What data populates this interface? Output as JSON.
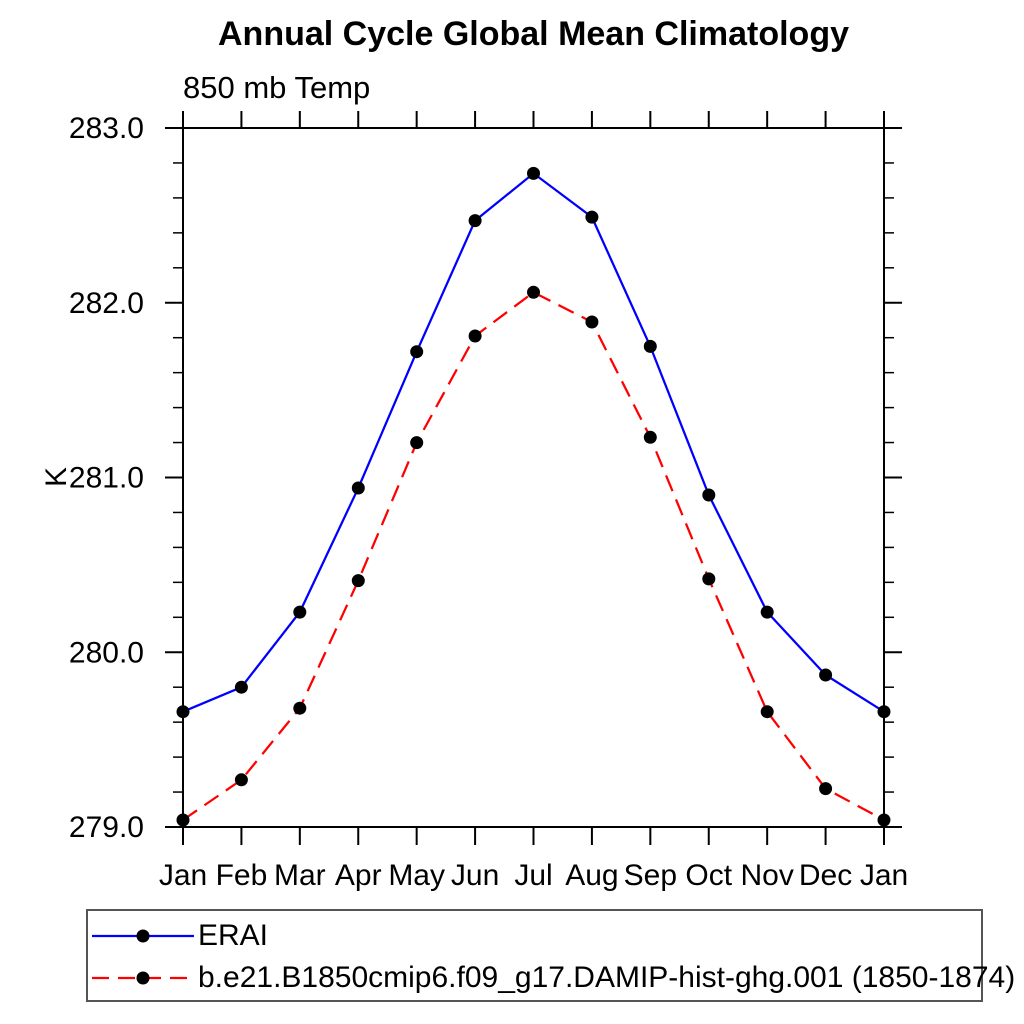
{
  "header": {
    "title": "Annual Cycle Global Mean Climatology",
    "subtitle": "850 mb Temp"
  },
  "axes": {
    "ylabel": "K",
    "y_tick_labels": [
      "279.0",
      "280.0",
      "281.0",
      "282.0",
      "283.0"
    ],
    "x_tick_labels": [
      "Jan",
      "Feb",
      "Mar",
      "Apr",
      "May",
      "Jun",
      "Jul",
      "Aug",
      "Sep",
      "Oct",
      "Nov",
      "Dec",
      "Jan"
    ]
  },
  "colors": {
    "erai_line": "#0000ff",
    "model_line": "#ff0000",
    "marker": "#000000",
    "axis": "#000000",
    "legend_border": "#555555"
  },
  "chart_data": {
    "type": "line",
    "title": "Annual Cycle Global Mean Climatology",
    "subtitle": "850 mb Temp",
    "xlabel": "",
    "ylabel": "K",
    "x_categories": [
      "Jan",
      "Feb",
      "Mar",
      "Apr",
      "May",
      "Jun",
      "Jul",
      "Aug",
      "Sep",
      "Oct",
      "Nov",
      "Dec",
      "Jan"
    ],
    "ylim": [
      279.0,
      283.0
    ],
    "y_major_tick_step": 1.0,
    "y_minor_tick_step": 0.2,
    "grid": false,
    "tick_direction": "out",
    "legend_position": "bottom-box",
    "series": [
      {
        "name": "ERAI",
        "color": "#0000ff",
        "line_style": "solid",
        "marker": "filled-circle",
        "marker_color": "#000000",
        "values": [
          279.66,
          279.8,
          280.23,
          280.94,
          281.72,
          282.47,
          282.74,
          282.49,
          281.75,
          280.9,
          280.23,
          279.87,
          279.66
        ]
      },
      {
        "name": "b.e21.B1850cmip6.f09_g17.DAMIP-hist-ghg.001 (1850-1874)",
        "color": "#ff0000",
        "line_style": "dashed",
        "marker": "filled-circle",
        "marker_color": "#000000",
        "values": [
          279.04,
          279.27,
          279.68,
          280.41,
          281.2,
          281.81,
          282.06,
          281.89,
          281.23,
          280.42,
          279.66,
          279.22,
          279.04
        ]
      }
    ]
  }
}
